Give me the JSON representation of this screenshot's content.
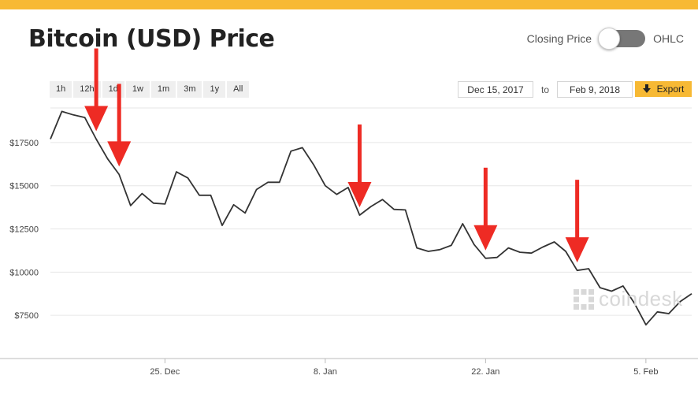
{
  "page": {
    "title": "Bitcoin (USD) Price"
  },
  "toggle": {
    "left_label": "Closing Price",
    "right_label": "OHLC"
  },
  "ranges": [
    "1h",
    "12h",
    "1d",
    "1w",
    "1m",
    "3m",
    "1y",
    "All"
  ],
  "date_range": {
    "from": "Dec 15, 2017",
    "to_label": "to",
    "to": "Feb 9, 2018"
  },
  "export": {
    "label": "Export",
    "icon": "download-arrow-icon"
  },
  "watermark": "coindesk",
  "colors": {
    "accent": "#f7b934",
    "line": "#333333",
    "arrow": "#ee2b24",
    "grid": "#e6e6e6"
  },
  "annotations": {
    "arrows": [
      {
        "target_date": "2017-12-19"
      },
      {
        "target_date": "2017-12-21"
      },
      {
        "target_date": "2018-01-11"
      },
      {
        "target_date": "2018-01-22"
      },
      {
        "target_date": "2018-01-30"
      }
    ]
  },
  "chart_data": {
    "type": "line",
    "title": "",
    "xlabel": "",
    "ylabel": "",
    "x_ticks": [
      {
        "date": "2017-12-25",
        "label": "25. Dec"
      },
      {
        "date": "2018-01-08",
        "label": "8. Jan"
      },
      {
        "date": "2018-01-22",
        "label": "22. Jan"
      },
      {
        "date": "2018-02-05",
        "label": "5. Feb"
      }
    ],
    "y_ticks": [
      7500,
      10000,
      12500,
      15000,
      17500
    ],
    "y_tick_labels": [
      "$7500",
      "$10000",
      "$12500",
      "$15000",
      "$17500"
    ],
    "ylim": [
      5000,
      19500
    ],
    "xlim": [
      "2017-12-15",
      "2018-02-09"
    ],
    "grid": true,
    "legend": "none",
    "series": [
      {
        "x": [
          "2017-12-15",
          "2017-12-16",
          "2017-12-17",
          "2017-12-18",
          "2017-12-19",
          "2017-12-20",
          "2017-12-21",
          "2017-12-22",
          "2017-12-23",
          "2017-12-24",
          "2017-12-25",
          "2017-12-26",
          "2017-12-27",
          "2017-12-28",
          "2017-12-29",
          "2017-12-30",
          "2017-12-31",
          "2018-01-01",
          "2018-01-02",
          "2018-01-03",
          "2018-01-04",
          "2018-01-05",
          "2018-01-06",
          "2018-01-07",
          "2018-01-08",
          "2018-01-09",
          "2018-01-10",
          "2018-01-11",
          "2018-01-12",
          "2018-01-13",
          "2018-01-14",
          "2018-01-15",
          "2018-01-16",
          "2018-01-17",
          "2018-01-18",
          "2018-01-19",
          "2018-01-20",
          "2018-01-21",
          "2018-01-22",
          "2018-01-23",
          "2018-01-24",
          "2018-01-25",
          "2018-01-26",
          "2018-01-27",
          "2018-01-28",
          "2018-01-29",
          "2018-01-30",
          "2018-01-31",
          "2018-02-01",
          "2018-02-02",
          "2018-02-03",
          "2018-02-04",
          "2018-02-05",
          "2018-02-06",
          "2018-02-07",
          "2018-02-08",
          "2018-02-09"
        ],
        "values": [
          17700,
          19300,
          19100,
          18950,
          17700,
          16550,
          15650,
          13850,
          14550,
          13990,
          13940,
          15800,
          15450,
          14450,
          14450,
          12700,
          13900,
          13420,
          14780,
          15200,
          15200,
          17000,
          17200,
          16200,
          15000,
          14500,
          14900,
          13300,
          13800,
          14200,
          13630,
          13600,
          11400,
          11200,
          11300,
          11550,
          12800,
          11600,
          10800,
          10850,
          11400,
          11150,
          11100,
          11450,
          11750,
          11200,
          10100,
          10200,
          9100,
          8900,
          9200,
          8200,
          6950,
          7700,
          7600,
          8300,
          8750
        ]
      }
    ]
  }
}
